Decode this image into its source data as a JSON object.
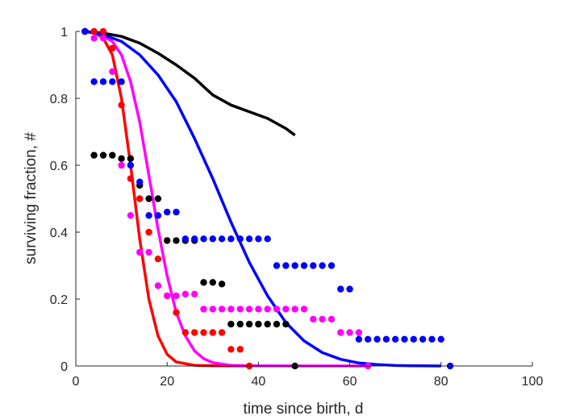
{
  "chart_data": {
    "type": "scatter",
    "title": "",
    "xlabel": "time since birth, d",
    "ylabel": "surviving fraction, #",
    "xlim": [
      0,
      100
    ],
    "ylim": [
      0,
      1
    ],
    "x_ticks": [
      "0",
      "20",
      "40",
      "60",
      "80",
      "100"
    ],
    "y_ticks": [
      "0",
      "0.2",
      "0.4",
      "0.6",
      "0.8",
      "1"
    ],
    "grid": false,
    "legend": "none",
    "series": [
      {
        "color": "#ff0000",
        "points": [
          [
            2,
            1
          ],
          [
            4,
            1
          ],
          [
            6,
            1
          ],
          [
            8,
            0.95
          ],
          [
            10,
            0.78
          ],
          [
            12,
            0.56
          ],
          [
            14,
            0.5
          ],
          [
            16,
            0.4
          ],
          [
            18,
            0.32
          ],
          [
            20,
            0.21
          ],
          [
            22,
            0.16
          ],
          [
            24,
            0.1
          ],
          [
            26,
            0.1
          ],
          [
            28,
            0.1
          ],
          [
            30,
            0.1
          ],
          [
            32,
            0.1
          ],
          [
            34,
            0.05
          ],
          [
            36,
            0.05
          ],
          [
            38,
            0
          ]
        ],
        "fit": [
          [
            2,
            1
          ],
          [
            4,
            0.997
          ],
          [
            6,
            0.98
          ],
          [
            8,
            0.93
          ],
          [
            10,
            0.8
          ],
          [
            12,
            0.6
          ],
          [
            14,
            0.38
          ],
          [
            16,
            0.2
          ],
          [
            18,
            0.09
          ],
          [
            20,
            0.035
          ],
          [
            22,
            0.012
          ],
          [
            26,
            0.002
          ],
          [
            30,
            0.0004
          ],
          [
            38,
            0
          ]
        ]
      },
      {
        "color": "#ff00ff",
        "points": [
          [
            2,
            1
          ],
          [
            4,
            0.98
          ],
          [
            6,
            0.98
          ],
          [
            8,
            0.88
          ],
          [
            10,
            0.6
          ],
          [
            12,
            0.45
          ],
          [
            14,
            0.34
          ],
          [
            16,
            0.34
          ],
          [
            18,
            0.24
          ],
          [
            20,
            0.21
          ],
          [
            22,
            0.21
          ],
          [
            24,
            0.215
          ],
          [
            26,
            0.215
          ],
          [
            28,
            0.17
          ],
          [
            30,
            0.17
          ],
          [
            32,
            0.17
          ],
          [
            34,
            0.17
          ],
          [
            36,
            0.17
          ],
          [
            38,
            0.17
          ],
          [
            40,
            0.17
          ],
          [
            42,
            0.17
          ],
          [
            44,
            0.17
          ],
          [
            46,
            0.17
          ],
          [
            48,
            0.17
          ],
          [
            50,
            0.17
          ],
          [
            52,
            0.14
          ],
          [
            54,
            0.14
          ],
          [
            56,
            0.14
          ],
          [
            58,
            0.1
          ],
          [
            60,
            0.1
          ],
          [
            62,
            0.1
          ],
          [
            64,
            0
          ]
        ],
        "fit": [
          [
            2,
            1
          ],
          [
            5,
            0.995
          ],
          [
            8,
            0.97
          ],
          [
            10,
            0.93
          ],
          [
            12,
            0.85
          ],
          [
            14,
            0.73
          ],
          [
            16,
            0.57
          ],
          [
            18,
            0.41
          ],
          [
            20,
            0.27
          ],
          [
            22,
            0.16
          ],
          [
            24,
            0.09
          ],
          [
            26,
            0.045
          ],
          [
            28,
            0.022
          ],
          [
            30,
            0.01
          ],
          [
            34,
            0.002
          ],
          [
            40,
            0.0003
          ],
          [
            64,
            0
          ]
        ]
      },
      {
        "color": "#000000",
        "points": [
          [
            2,
            1
          ],
          [
            4,
            0.63
          ],
          [
            6,
            0.63
          ],
          [
            8,
            0.63
          ],
          [
            10,
            0.62
          ],
          [
            12,
            0.62
          ],
          [
            14,
            0.54
          ],
          [
            16,
            0.5
          ],
          [
            18,
            0.5
          ],
          [
            20,
            0.375
          ],
          [
            22,
            0.375
          ],
          [
            24,
            0.375
          ],
          [
            26,
            0.375
          ],
          [
            28,
            0.25
          ],
          [
            30,
            0.25
          ],
          [
            32,
            0.245
          ],
          [
            34,
            0.125
          ],
          [
            36,
            0.125
          ],
          [
            38,
            0.125
          ],
          [
            40,
            0.125
          ],
          [
            42,
            0.125
          ],
          [
            44,
            0.125
          ],
          [
            46,
            0.125
          ],
          [
            48,
            0
          ]
        ],
        "fit": [
          [
            2,
            1
          ],
          [
            6,
            0.995
          ],
          [
            10,
            0.985
          ],
          [
            14,
            0.965
          ],
          [
            18,
            0.935
          ],
          [
            22,
            0.9
          ],
          [
            26,
            0.86
          ],
          [
            30,
            0.81
          ],
          [
            34,
            0.78
          ],
          [
            38,
            0.76
          ],
          [
            42,
            0.74
          ],
          [
            46,
            0.71
          ],
          [
            48,
            0.69
          ]
        ]
      },
      {
        "color": "#0000ff",
        "points": [
          [
            2,
            1
          ],
          [
            4,
            0.85
          ],
          [
            6,
            0.85
          ],
          [
            8,
            0.85
          ],
          [
            10,
            0.85
          ],
          [
            12,
            0.6
          ],
          [
            14,
            0.55
          ],
          [
            16,
            0.45
          ],
          [
            18,
            0.45
          ],
          [
            20,
            0.46
          ],
          [
            22,
            0.46
          ],
          [
            24,
            0.38
          ],
          [
            26,
            0.38
          ],
          [
            28,
            0.38
          ],
          [
            30,
            0.38
          ],
          [
            32,
            0.38
          ],
          [
            34,
            0.38
          ],
          [
            36,
            0.38
          ],
          [
            38,
            0.38
          ],
          [
            40,
            0.38
          ],
          [
            42,
            0.38
          ],
          [
            44,
            0.3
          ],
          [
            46,
            0.3
          ],
          [
            48,
            0.3
          ],
          [
            50,
            0.3
          ],
          [
            52,
            0.3
          ],
          [
            54,
            0.3
          ],
          [
            56,
            0.3
          ],
          [
            58,
            0.23
          ],
          [
            60,
            0.23
          ],
          [
            62,
            0.08
          ],
          [
            64,
            0.08
          ],
          [
            66,
            0.08
          ],
          [
            68,
            0.08
          ],
          [
            70,
            0.08
          ],
          [
            72,
            0.08
          ],
          [
            74,
            0.08
          ],
          [
            76,
            0.08
          ],
          [
            78,
            0.08
          ],
          [
            80,
            0.08
          ],
          [
            82,
            0
          ]
        ],
        "fit": [
          [
            2,
            1
          ],
          [
            6,
            0.99
          ],
          [
            10,
            0.97
          ],
          [
            14,
            0.93
          ],
          [
            18,
            0.87
          ],
          [
            22,
            0.79
          ],
          [
            26,
            0.68
          ],
          [
            30,
            0.56
          ],
          [
            34,
            0.43
          ],
          [
            38,
            0.31
          ],
          [
            42,
            0.21
          ],
          [
            46,
            0.13
          ],
          [
            50,
            0.075
          ],
          [
            54,
            0.04
          ],
          [
            58,
            0.02
          ],
          [
            62,
            0.009
          ],
          [
            66,
            0.004
          ],
          [
            70,
            0.0015
          ],
          [
            74,
            0.0005
          ],
          [
            80,
            0
          ]
        ]
      }
    ]
  }
}
